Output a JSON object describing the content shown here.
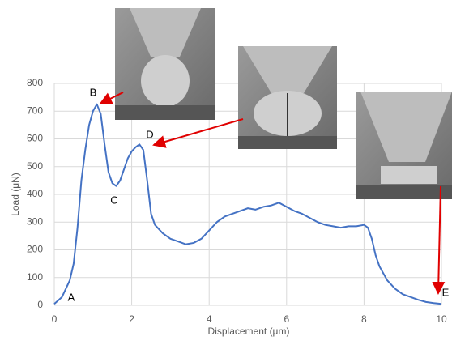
{
  "chart_data": {
    "type": "line",
    "xlabel": "Displacement (μm)",
    "ylabel": "Load (μN)",
    "annotations": [
      "A",
      "B",
      "C",
      "D",
      "E"
    ],
    "x": [
      0.0,
      0.2,
      0.4,
      0.5,
      0.6,
      0.7,
      0.8,
      0.9,
      1.0,
      1.1,
      1.2,
      1.3,
      1.4,
      1.5,
      1.6,
      1.7,
      1.8,
      1.9,
      2.0,
      2.1,
      2.2,
      2.3,
      2.4,
      2.5,
      2.6,
      2.8,
      3.0,
      3.2,
      3.4,
      3.6,
      3.8,
      4.0,
      4.2,
      4.4,
      4.6,
      4.8,
      5.0,
      5.2,
      5.4,
      5.6,
      5.8,
      6.0,
      6.2,
      6.4,
      6.6,
      6.8,
      7.0,
      7.2,
      7.4,
      7.6,
      7.8,
      8.0,
      8.1,
      8.2,
      8.3,
      8.4,
      8.6,
      8.8,
      9.0,
      9.2,
      9.4,
      9.6,
      9.8,
      10.0
    ],
    "series": [
      {
        "color": "#4472c4",
        "values": [
          5,
          30,
          90,
          150,
          280,
          450,
          560,
          650,
          700,
          725,
          690,
          580,
          480,
          440,
          430,
          450,
          490,
          530,
          555,
          570,
          580,
          560,
          450,
          330,
          290,
          260,
          240,
          230,
          220,
          225,
          240,
          270,
          300,
          320,
          330,
          340,
          350,
          345,
          355,
          360,
          370,
          355,
          340,
          330,
          315,
          300,
          290,
          285,
          280,
          285,
          285,
          290,
          280,
          240,
          180,
          140,
          90,
          60,
          40,
          30,
          20,
          12,
          8,
          5
        ]
      }
    ],
    "xlim": [
      0,
      10
    ],
    "xticks": [
      0,
      2,
      4,
      6,
      8,
      10
    ],
    "ylim": [
      0,
      800
    ],
    "yticks": [
      0,
      100,
      200,
      300,
      400,
      500,
      600,
      700,
      800
    ],
    "grid": true
  }
}
